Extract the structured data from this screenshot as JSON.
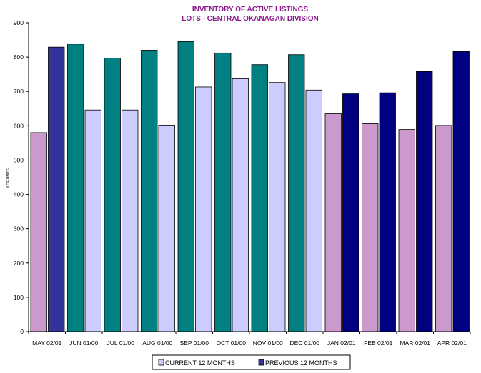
{
  "chart_data": {
    "type": "bar",
    "title": "INVENTORY OF ACTIVE LISTINGS",
    "subtitle": "LOTS - CENTRAL OKANAGAN DIVISION",
    "ylabel": "# OF UNITS",
    "xlabel": "",
    "ylim": [
      0,
      900
    ],
    "yticks": [
      0,
      100,
      200,
      300,
      400,
      500,
      600,
      700,
      800,
      900
    ],
    "categories": [
      "MAY 02/01",
      "JUN 01/00",
      "JUL 01/00",
      "AUG 01/00",
      "SEP 01/00",
      "OCT 01/00",
      "NOV 01/00",
      "DEC 01/00",
      "JAN 02/01",
      "FEB 02/01",
      "MAR 02/01",
      "APR 02/01"
    ],
    "series": [
      {
        "name": "CURRENT 12 MONTHS",
        "values": [
          580,
          838,
          797,
          820,
          845,
          812,
          778,
          807,
          635,
          606,
          589,
          601
        ],
        "colors": [
          "#cc99cc",
          "#008080",
          "#008080",
          "#008080",
          "#008080",
          "#008080",
          "#008080",
          "#008080",
          "#cc99cc",
          "#cc99cc",
          "#cc99cc",
          "#cc99cc"
        ]
      },
      {
        "name": "PREVIOUS 12 MONTHS",
        "values": [
          829,
          646,
          646,
          602,
          713,
          737,
          726,
          704,
          693,
          696,
          758,
          816
        ],
        "colors": [
          "#333399",
          "#ccccff",
          "#ccccff",
          "#ccccff",
          "#ccccff",
          "#ccccff",
          "#ccccff",
          "#ccccff",
          "#000080",
          "#000080",
          "#000080",
          "#000080"
        ]
      }
    ],
    "grid": false,
    "legend_position": "bottom-center",
    "legend_swatch_colors": [
      "#ccccff",
      "#333399"
    ]
  }
}
